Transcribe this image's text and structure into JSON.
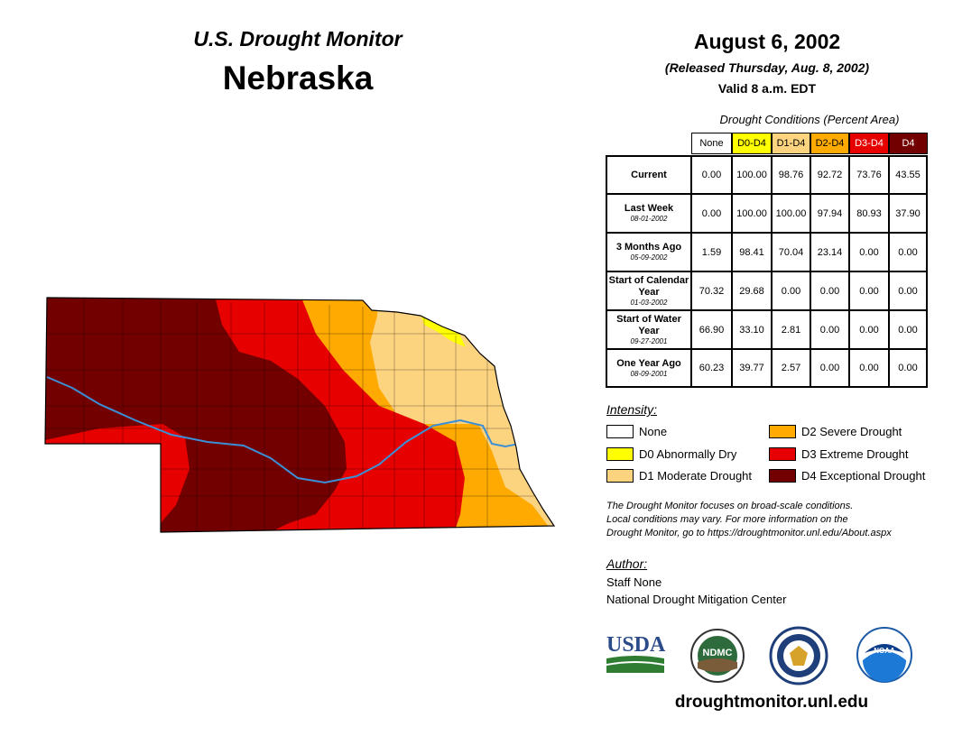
{
  "header": {
    "subtitle": "U.S. Drought Monitor",
    "state": "Nebraska",
    "date": "August 6, 2002",
    "released": "(Released Thursday, Aug. 8, 2002)",
    "valid": "Valid 8 a.m. EDT"
  },
  "table": {
    "caption": "Drought Conditions (Percent Area)",
    "columns": [
      {
        "label": "None",
        "color": "#ffffff",
        "text_color": "#000000"
      },
      {
        "label": "D0-D4",
        "color": "#ffff00",
        "text_color": "#000000"
      },
      {
        "label": "D1-D4",
        "color": "#fcd37f",
        "text_color": "#000000"
      },
      {
        "label": "D2-D4",
        "color": "#ffaa00",
        "text_color": "#000000"
      },
      {
        "label": "D3-D4",
        "color": "#e60000",
        "text_color": "#ffffff"
      },
      {
        "label": "D4",
        "color": "#730000",
        "text_color": "#ffffff"
      }
    ],
    "rows": [
      {
        "label": "Current",
        "date": "",
        "values": [
          "0.00",
          "100.00",
          "98.76",
          "92.72",
          "73.76",
          "43.55"
        ]
      },
      {
        "label": "Last Week",
        "date": "08-01-2002",
        "values": [
          "0.00",
          "100.00",
          "100.00",
          "97.94",
          "80.93",
          "37.90"
        ]
      },
      {
        "label": "3 Months Ago",
        "date": "05-09-2002",
        "values": [
          "1.59",
          "98.41",
          "70.04",
          "23.14",
          "0.00",
          "0.00"
        ]
      },
      {
        "label": "Start of Calendar Year",
        "date": "01-03-2002",
        "values": [
          "70.32",
          "29.68",
          "0.00",
          "0.00",
          "0.00",
          "0.00"
        ]
      },
      {
        "label": "Start of Water Year",
        "date": "09-27-2001",
        "values": [
          "66.90",
          "33.10",
          "2.81",
          "0.00",
          "0.00",
          "0.00"
        ]
      },
      {
        "label": "One Year Ago",
        "date": "08-09-2001",
        "values": [
          "60.23",
          "39.77",
          "2.57",
          "0.00",
          "0.00",
          "0.00"
        ]
      }
    ]
  },
  "legend": {
    "title": "Intensity:",
    "items": [
      {
        "label": "None",
        "color": "#ffffff"
      },
      {
        "label": "D0 Abnormally Dry",
        "color": "#ffff00"
      },
      {
        "label": "D1 Moderate Drought",
        "color": "#fcd37f"
      },
      {
        "label": "D2 Severe Drought",
        "color": "#ffaa00"
      },
      {
        "label": "D3 Extreme Drought",
        "color": "#e60000"
      },
      {
        "label": "D4 Exceptional Drought",
        "color": "#730000"
      }
    ]
  },
  "note": {
    "line1": "The Drought Monitor focuses on broad-scale conditions.",
    "line2": "Local conditions may vary. For more information on the",
    "line3": "Drought Monitor, go to https://droughtmonitor.unl.edu/About.aspx"
  },
  "author": {
    "title": "Author:",
    "name": "Staff None",
    "org": "National Drought Mitigation Center"
  },
  "logos": {
    "usda": "USDA",
    "ndmc": "NDMC",
    "noaa": "NOAA"
  },
  "footer_url": "droughtmonitor.unl.edu",
  "colors": {
    "D0": "#ffff00",
    "D1": "#fcd37f",
    "D2": "#ffaa00",
    "D3": "#e60000",
    "D4": "#730000",
    "river": "#3b8fd6"
  }
}
